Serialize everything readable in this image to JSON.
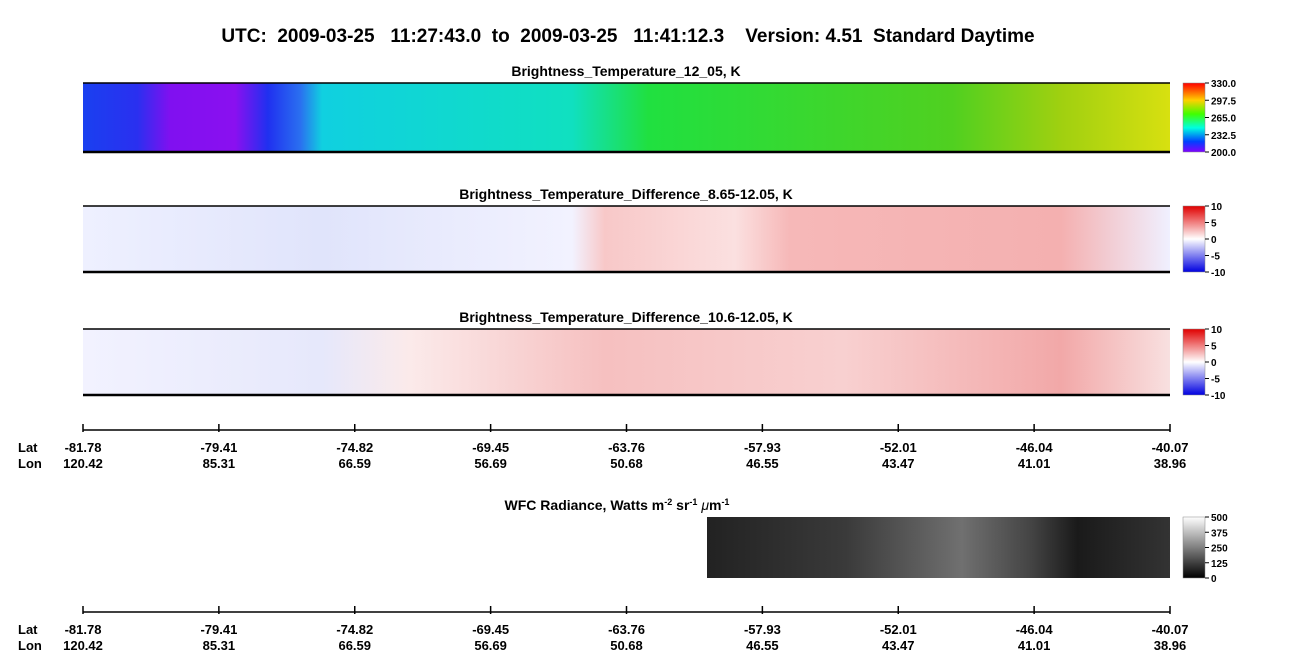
{
  "header": {
    "title": "UTC:  2009-03-25   11:27:43.0  to  2009-03-25   11:41:12.3    Version: 4.51  Standard Daytime"
  },
  "panels": [
    {
      "title": "Brightness_Temperature_12_05, K",
      "colorbar": [
        "330.0",
        "297.5",
        "265.0",
        "232.5",
        "200.0"
      ]
    },
    {
      "title": "Brightness_Temperature_Difference_8.65-12.05, K",
      "colorbar": [
        "10",
        "5",
        "0",
        "-5",
        "-10"
      ]
    },
    {
      "title": "Brightness_Temperature_Difference_10.6-12.05, K",
      "colorbar": [
        "10",
        "5",
        "0",
        "-5",
        "-10"
      ]
    }
  ],
  "wfc": {
    "title_parts": [
      "WFC Radiance, Watts m",
      "-2",
      " sr",
      "-1",
      " ",
      "μ",
      "m",
      "-1"
    ],
    "colorbar": [
      "500",
      "375",
      "250",
      "125",
      "0"
    ]
  },
  "axis": {
    "row_labels": [
      "Lat",
      "Lon"
    ],
    "lat": [
      "-81.78",
      "-79.41",
      "-74.82",
      "-69.45",
      "-63.76",
      "-57.93",
      "-52.01",
      "-46.04",
      "-40.07"
    ],
    "lon": [
      "120.42",
      "85.31",
      "66.59",
      "56.69",
      "50.68",
      "46.55",
      "43.47",
      "41.01",
      "38.96"
    ]
  }
}
